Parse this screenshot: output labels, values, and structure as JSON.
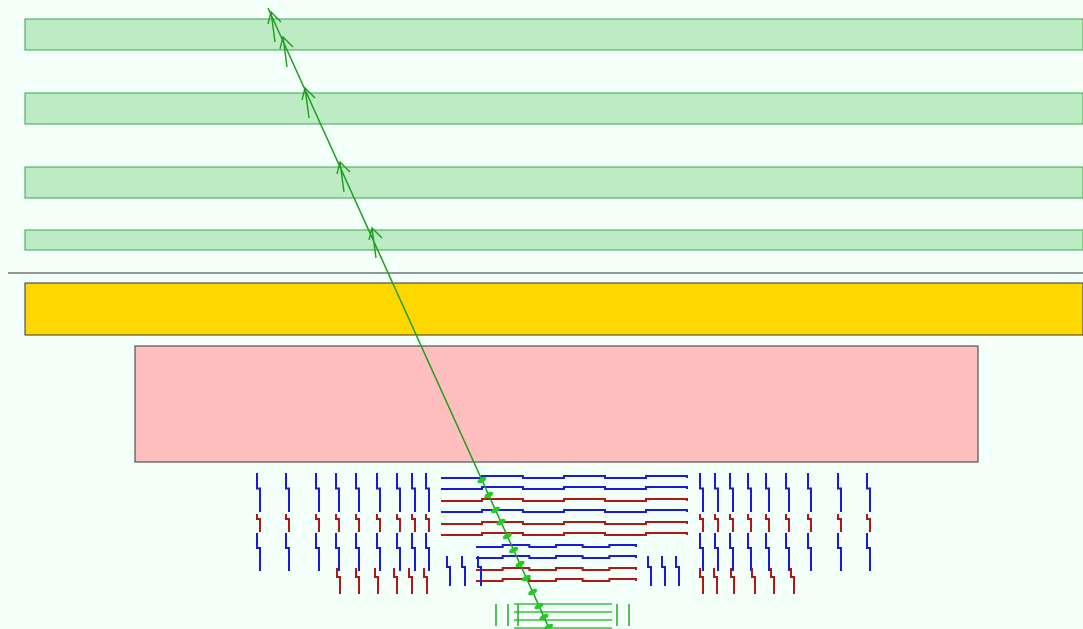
{
  "view": {
    "type": "event-display",
    "background_color": "#f3fff9"
  },
  "colors": {
    "muon_chamber_fill": "#bdebc4",
    "muon_chamber_stroke": "#3aa64a",
    "solenoid_fill": "#ffd700",
    "hcal_fill": "#ffbfbf",
    "tracker_blue": "#1a1adb",
    "tracker_red": "#b01818",
    "tracker_green": "#22aa22",
    "track_color": "#1e9e1e",
    "hit_color": "#22cc22",
    "separator_color": "#333333"
  },
  "detector": {
    "muon_chambers": 4,
    "tracker_layers_blue_red": 13,
    "pixel_layers": 3
  },
  "track": {
    "hit_count": 12,
    "muon_segment_count": 5
  }
}
